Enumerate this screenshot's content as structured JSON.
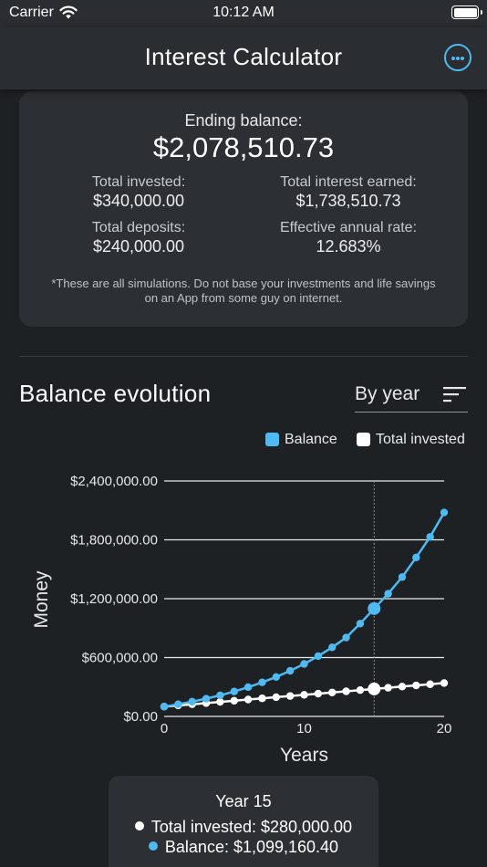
{
  "status_bar": {
    "carrier": "Carrier",
    "time": "10:12 AM"
  },
  "nav": {
    "title": "Interest Calculator"
  },
  "summary": {
    "ending_label": "Ending balance:",
    "ending_value": "$2,078,510.73",
    "total_invested_label": "Total invested:",
    "total_invested_value": "$340,000.00",
    "total_interest_label": "Total interest earned:",
    "total_interest_value": "$1,738,510.73",
    "total_deposits_label": "Total deposits:",
    "total_deposits_value": "$240,000.00",
    "effective_rate_label": "Effective annual rate:",
    "effective_rate_value": "12.683%",
    "disclaimer_line1": "*These are all simulations. Do not base your investments and life savings",
    "disclaimer_line2": "on an App from some guy on internet."
  },
  "section": {
    "title": "Balance evolution",
    "period": "By year"
  },
  "colors": {
    "balance": "#4fb9f1",
    "invested": "#ffffff",
    "background": "#1e2124",
    "card": "#2c2f33"
  },
  "chart_data": {
    "type": "line",
    "x": [
      0,
      1,
      2,
      3,
      4,
      5,
      6,
      7,
      8,
      9,
      10,
      11,
      12,
      13,
      14,
      15,
      16,
      17,
      18,
      19,
      20
    ],
    "series": [
      {
        "name": "Balance",
        "values": [
          100000,
          124000,
          151000,
          181000,
          215000,
          254000,
          298000,
          347000,
          402000,
          465000,
          535000,
          615000,
          704000,
          804000,
          946000,
          1099160.4,
          1250000,
          1420000,
          1620000,
          1830000,
          2078510.73
        ]
      },
      {
        "name": "Total invested",
        "values": [
          100000,
          112000,
          124000,
          136000,
          148000,
          160000,
          172000,
          184000,
          196000,
          208000,
          220000,
          232000,
          244000,
          256000,
          268000,
          280000,
          292000,
          304000,
          316000,
          328000,
          340000
        ]
      }
    ],
    "ylim": [
      0,
      2400000
    ],
    "yticks": [
      "$0.00",
      "$600,000.00",
      "$1,200,000.00",
      "$1,800,000.00",
      "$2,400,000.00"
    ],
    "ytick_values": [
      0,
      600000,
      1200000,
      1800000,
      2400000
    ],
    "xticks": [
      "0",
      "10",
      "20"
    ],
    "xtick_values": [
      0,
      10,
      20
    ],
    "xlim": [
      0,
      20
    ],
    "xlabel": "Years",
    "ylabel": "Money",
    "grid": true,
    "legend": "top-right",
    "highlight_x": 15
  },
  "tooltip": {
    "title": "Year 15",
    "invested_text": "Total invested: $280,000.00",
    "balance_text": "Balance: $1,099,160.40"
  },
  "legend": {
    "balance": "Balance",
    "invested": "Total invested"
  }
}
